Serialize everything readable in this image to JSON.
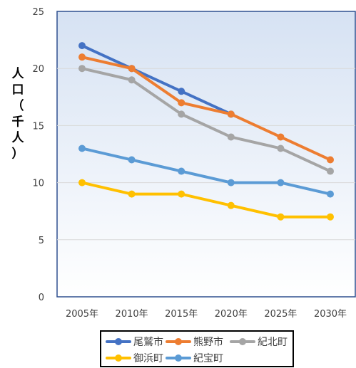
{
  "chart_data": {
    "type": "line",
    "title": "",
    "xlabel": "",
    "ylabel": "人口（千人）",
    "ylim": [
      0,
      25
    ],
    "yticks": [
      0,
      5,
      10,
      15,
      20,
      25
    ],
    "grid": true,
    "legend_position": "bottom",
    "categories": [
      "2005年",
      "2010年",
      "2015年",
      "2020年",
      "2025年",
      "2030年"
    ],
    "series": [
      {
        "name": "尾鷲市",
        "color": "#4472C4",
        "values": [
          22,
          20,
          18,
          16,
          null,
          null
        ]
      },
      {
        "name": "熊野市",
        "color": "#ED7D31",
        "values": [
          21,
          20,
          17,
          16,
          14,
          12
        ]
      },
      {
        "name": "紀北町",
        "color": "#A5A5A5",
        "values": [
          20,
          19,
          16,
          14,
          13,
          11
        ]
      },
      {
        "name": "御浜町",
        "color": "#FFC000",
        "values": [
          10,
          9,
          9,
          8,
          7,
          7
        ]
      },
      {
        "name": "紀宝町",
        "color": "#5B9BD5",
        "values": [
          13,
          12,
          11,
          10,
          10,
          9
        ]
      }
    ]
  }
}
